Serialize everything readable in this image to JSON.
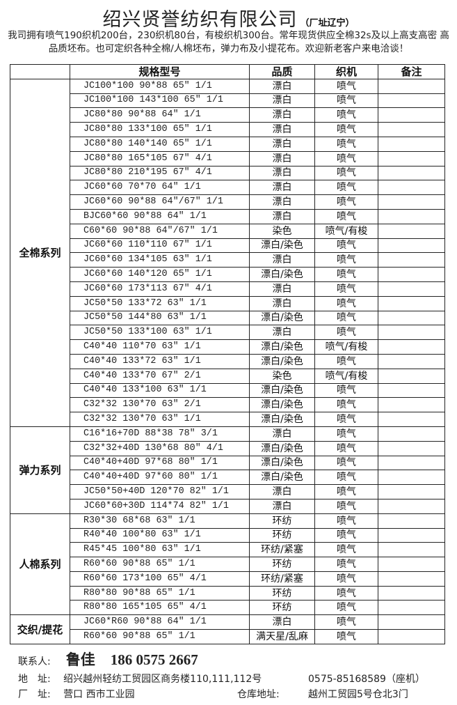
{
  "header": {
    "title": "绍兴贤誉纺织有限公司",
    "subtitle": "（厂址辽宁）",
    "intro": "我司拥有喷气190织机200台，230织机80台，有梭织机300台。常年现货供应全棉32s及以上高支高密 高品质坯布。也可定织各种全棉/人棉坯布，弹力布及小提花布。欢迎新老客户来电洽谈！"
  },
  "table": {
    "columns": [
      "",
      "规格型号",
      "品质",
      "织机",
      "备注"
    ],
    "groups": [
      {
        "category": "全棉系列",
        "rows": [
          [
            "JC100*100 90*88 65″ 1/1",
            "漂白",
            "喷气"
          ],
          [
            "JC100*100 143*100 65″ 1/1",
            "漂白",
            "喷气"
          ],
          [
            "JC80*80 90*88 64″ 1/1",
            "漂白",
            "喷气"
          ],
          [
            "JC80*80 133*100 65″ 1/1",
            "漂白",
            "喷气"
          ],
          [
            "JC80*80 140*140 65″ 1/1",
            "漂白",
            "喷气"
          ],
          [
            "JC80*80 165*105 67″ 4/1",
            "漂白",
            "喷气"
          ],
          [
            "JC80*80 210*195 67″ 4/1",
            "漂白",
            "喷气"
          ],
          [
            "JC60*60 70*70 64″ 1/1",
            "漂白",
            "喷气"
          ],
          [
            "JC60*60 90*88 64″/67″ 1/1",
            "漂白",
            "喷气"
          ],
          [
            "BJC60*60 90*88 64″ 1/1",
            "漂白",
            "喷气"
          ],
          [
            "C60*60 90*88 64″/67″ 1/1",
            "染色",
            "喷气/有梭"
          ],
          [
            "JC60*60 110*110 67″ 1/1",
            "漂白/染色",
            "喷气"
          ],
          [
            "JC60*60 134*105 63″ 1/1",
            "漂白",
            "喷气"
          ],
          [
            "JC60*60 140*120 65″ 1/1",
            "漂白/染色",
            "喷气"
          ],
          [
            "JC60*60 173*113 67″ 4/1",
            "漂白",
            "喷气"
          ],
          [
            "JC50*50 133*72 63″ 1/1",
            "漂白",
            "喷气"
          ],
          [
            "JC50*50 144*80 63″ 1/1",
            "漂白/染色",
            "喷气"
          ],
          [
            "JC50*50 133*100 63″ 1/1",
            "漂白",
            "喷气"
          ],
          [
            "C40*40 110*70 63″ 1/1",
            "漂白/染色",
            "喷气/有梭"
          ],
          [
            "C40*40 133*72 63″ 1/1",
            "漂白/染色",
            "喷气"
          ],
          [
            "C40*40 133*70 67″ 2/1",
            "染色",
            "喷气/有梭"
          ],
          [
            "C40*40 133*100 63″ 1/1",
            "漂白/染色",
            "喷气"
          ],
          [
            "C32*32 130*70 63″ 2/1",
            "漂白/染色",
            "喷气"
          ],
          [
            "C32*32 130*70 63″ 1/1",
            "漂白/染色",
            "喷气"
          ]
        ]
      },
      {
        "category": "弹力系列",
        "rows": [
          [
            "C16*16+70D 88*38 78″ 3/1",
            "漂白",
            "喷气"
          ],
          [
            "C32*32+40D 130*68 80″ 4/1",
            "漂白/染色",
            "喷气"
          ],
          [
            "C40*40+40D 97*68 80″ 1/1",
            "漂白/染色",
            "喷气"
          ],
          [
            "C40*40+40D 97*60 80″ 1/1",
            "漂白/染色",
            "喷气"
          ],
          [
            "JC50*50+40D 120*70 82″ 1/1",
            "漂白",
            "喷气"
          ],
          [
            "JC60*60+30D 114*74 82″ 1/1",
            "漂白",
            "喷气"
          ]
        ]
      },
      {
        "category": "人棉系列",
        "rows": [
          [
            "R30*30 68*68 63″ 1/1",
            "环纺",
            "喷气"
          ],
          [
            "R40*40 100*80 63″ 1/1",
            "环纺",
            "喷气"
          ],
          [
            "R45*45 100*80 63″ 1/1",
            "环纺/紧塞",
            "喷气"
          ],
          [
            "R60*60 90*88 65″ 1/1",
            "环纺",
            "喷气"
          ],
          [
            "R60*60 173*100 65″ 4/1",
            "环纺/紧塞",
            "喷气"
          ],
          [
            "R80*80 90*88 65″ 1/1",
            "环纺",
            "喷气"
          ],
          [
            "R80*80 165*105 65″ 4/1",
            "环纺",
            "喷气"
          ]
        ]
      },
      {
        "category": "交织/提花",
        "rows": [
          [
            "JC60*R60 90*88 64″ 1/1",
            "漂白",
            "喷气"
          ],
          [
            "R60*60 90*88 65″ 1/1",
            "满天星/乱麻",
            "喷气"
          ]
        ]
      }
    ]
  },
  "footer": {
    "contact_label": "联系人:",
    "contact_name": "鲁佳",
    "contact_phone": "186 0575 2667",
    "address_label": "地　址:",
    "address": "绍兴越州轻纺工贸园区商务楼110,111,112号",
    "landline": "0575-85168589（座机）",
    "factory_label": "厂　址:",
    "factory": "营口 西市工业园",
    "warehouse_label": "仓库地址:",
    "warehouse": "越州工贸园5号仓北3门"
  }
}
